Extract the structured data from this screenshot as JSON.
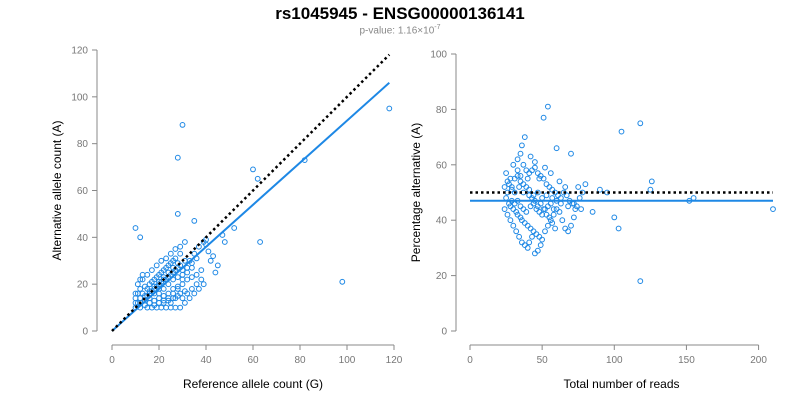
{
  "title": "rs1045945 - ENSG00000136141",
  "subtitle": {
    "prefix": "p-value: 1.16×10",
    "exponent": "-7"
  },
  "colors": {
    "points": "#1e88e5",
    "fit": "#1e88e5",
    "reference": "#000000",
    "axis": "#888888"
  },
  "chart_data": [
    {
      "type": "scatter",
      "xlabel": "Reference allele count (G)",
      "ylabel": "Alternative allele count (A)",
      "xlim": [
        0,
        120
      ],
      "ylim": [
        0,
        120
      ],
      "xticks": [
        0,
        20,
        40,
        60,
        80,
        100,
        120
      ],
      "yticks": [
        0,
        20,
        40,
        60,
        80,
        100,
        120
      ],
      "fit_line": {
        "x": [
          0,
          118
        ],
        "y": [
          0,
          106
        ]
      },
      "reference_line": {
        "x": [
          0,
          118
        ],
        "y": [
          0,
          118
        ]
      },
      "points": [
        [
          10,
          44
        ],
        [
          12,
          40
        ],
        [
          28,
          74
        ],
        [
          30,
          88
        ],
        [
          28,
          50
        ],
        [
          35,
          47
        ],
        [
          40,
          39
        ],
        [
          47,
          41
        ],
        [
          48,
          38
        ],
        [
          52,
          44
        ],
        [
          60,
          69
        ],
        [
          62,
          65
        ],
        [
          63,
          38
        ],
        [
          82,
          73
        ],
        [
          98,
          21
        ],
        [
          118,
          95
        ],
        [
          40,
          37
        ],
        [
          42,
          30
        ],
        [
          44,
          25
        ],
        [
          36,
          31
        ],
        [
          34,
          29
        ],
        [
          32,
          27
        ],
        [
          30,
          24
        ],
        [
          28,
          27
        ],
        [
          26,
          25
        ],
        [
          24,
          23
        ],
        [
          22,
          22
        ],
        [
          20,
          20
        ],
        [
          18,
          18
        ],
        [
          16,
          17
        ],
        [
          14,
          15
        ],
        [
          12,
          14
        ],
        [
          11,
          12
        ],
        [
          10,
          10
        ],
        [
          10,
          12
        ],
        [
          10,
          14
        ],
        [
          12,
          10
        ],
        [
          14,
          11
        ],
        [
          16,
          12
        ],
        [
          18,
          13
        ],
        [
          20,
          14
        ],
        [
          22,
          15
        ],
        [
          24,
          16
        ],
        [
          26,
          18
        ],
        [
          28,
          19
        ],
        [
          30,
          20
        ],
        [
          32,
          22
        ],
        [
          34,
          23
        ],
        [
          36,
          24
        ],
        [
          38,
          26
        ],
        [
          20,
          24
        ],
        [
          22,
          26
        ],
        [
          24,
          28
        ],
        [
          26,
          30
        ],
        [
          18,
          22
        ],
        [
          16,
          20
        ],
        [
          14,
          19
        ],
        [
          12,
          18
        ],
        [
          11,
          16
        ],
        [
          13,
          22
        ],
        [
          15,
          24
        ],
        [
          17,
          26
        ],
        [
          19,
          28
        ],
        [
          21,
          30
        ],
        [
          23,
          31
        ],
        [
          25,
          33
        ],
        [
          27,
          35
        ],
        [
          29,
          36
        ],
        [
          31,
          38
        ],
        [
          15,
          10
        ],
        [
          17,
          10
        ],
        [
          19,
          10
        ],
        [
          21,
          10
        ],
        [
          23,
          10
        ],
        [
          25,
          10
        ],
        [
          27,
          10
        ],
        [
          29,
          10
        ],
        [
          31,
          12
        ],
        [
          33,
          14
        ],
        [
          35,
          16
        ],
        [
          37,
          18
        ],
        [
          39,
          20
        ],
        [
          25,
          12
        ],
        [
          27,
          14
        ],
        [
          29,
          16
        ],
        [
          31,
          17
        ],
        [
          20,
          16
        ],
        [
          22,
          18
        ],
        [
          24,
          20
        ],
        [
          26,
          22
        ],
        [
          28,
          23
        ],
        [
          30,
          26
        ],
        [
          14,
          13
        ],
        [
          16,
          14
        ],
        [
          18,
          16
        ],
        [
          20,
          18
        ],
        [
          12,
          12
        ],
        [
          13,
          16
        ],
        [
          15,
          18
        ],
        [
          17,
          21
        ],
        [
          19,
          23
        ],
        [
          21,
          25
        ],
        [
          23,
          27
        ],
        [
          25,
          29
        ],
        [
          27,
          31
        ],
        [
          29,
          33
        ],
        [
          33,
          30
        ],
        [
          35,
          33
        ],
        [
          37,
          36
        ],
        [
          39,
          38
        ],
        [
          41,
          34
        ],
        [
          43,
          32
        ],
        [
          45,
          28
        ],
        [
          30,
          14
        ],
        [
          32,
          16
        ],
        [
          34,
          18
        ],
        [
          36,
          20
        ],
        [
          38,
          22
        ],
        [
          24,
          14
        ],
        [
          26,
          16
        ],
        [
          28,
          18
        ],
        [
          30,
          22
        ],
        [
          32,
          25
        ],
        [
          34,
          27
        ],
        [
          22,
          12
        ],
        [
          24,
          13
        ],
        [
          26,
          14
        ],
        [
          28,
          15
        ],
        [
          18,
          11
        ],
        [
          20,
          12
        ],
        [
          22,
          13
        ],
        [
          16,
          16
        ],
        [
          18,
          19
        ],
        [
          20,
          21
        ],
        [
          22,
          23
        ],
        [
          24,
          25
        ],
        [
          26,
          27
        ],
        [
          28,
          29
        ],
        [
          10,
          16
        ],
        [
          11,
          20
        ],
        [
          12,
          22
        ],
        [
          13,
          24
        ],
        [
          15,
          15
        ],
        [
          17,
          17
        ],
        [
          19,
          19
        ],
        [
          21,
          21
        ],
        [
          23,
          22
        ],
        [
          25,
          24
        ],
        [
          27,
          26
        ],
        [
          29,
          28
        ],
        [
          31,
          30
        ]
      ]
    },
    {
      "type": "scatter",
      "xlabel": "Total number of reads",
      "ylabel": "Percentage alternative (A)",
      "xlim": [
        0,
        210
      ],
      "ylim": [
        0,
        100
      ],
      "xticks": [
        0,
        50,
        100,
        150,
        200
      ],
      "yticks": [
        0,
        20,
        40,
        60,
        80,
        100
      ],
      "fit_line": {
        "x": [
          0,
          210
        ],
        "y": [
          47,
          47
        ]
      },
      "reference_line": {
        "x": [
          0,
          210
        ],
        "y": [
          50,
          50
        ]
      },
      "points": [
        [
          54,
          81
        ],
        [
          51,
          77
        ],
        [
          118,
          75
        ],
        [
          105,
          72
        ],
        [
          38,
          70
        ],
        [
          36,
          67
        ],
        [
          60,
          66
        ],
        [
          42,
          63
        ],
        [
          70,
          64
        ],
        [
          45,
          61
        ],
        [
          30,
          60
        ],
        [
          33,
          58
        ],
        [
          52,
          59
        ],
        [
          56,
          57
        ],
        [
          25,
          57
        ],
        [
          28,
          55
        ],
        [
          35,
          56
        ],
        [
          40,
          55
        ],
        [
          48,
          55
        ],
        [
          62,
          54
        ],
        [
          66,
          52
        ],
        [
          80,
          53
        ],
        [
          95,
          50
        ],
        [
          90,
          51
        ],
        [
          75,
          52
        ],
        [
          126,
          54
        ],
        [
          125,
          51
        ],
        [
          24,
          52
        ],
        [
          26,
          50
        ],
        [
          29,
          51
        ],
        [
          31,
          50
        ],
        [
          34,
          52
        ],
        [
          37,
          50
        ],
        [
          41,
          51
        ],
        [
          44,
          49
        ],
        [
          47,
          50
        ],
        [
          50,
          48
        ],
        [
          53,
          49
        ],
        [
          57,
          48
        ],
        [
          60,
          47
        ],
        [
          63,
          46
        ],
        [
          68,
          45
        ],
        [
          72,
          46
        ],
        [
          77,
          44
        ],
        [
          85,
          43
        ],
        [
          100,
          41
        ],
        [
          103,
          37
        ],
        [
          152,
          47
        ],
        [
          155,
          48
        ],
        [
          210,
          44
        ],
        [
          25,
          48
        ],
        [
          27,
          46
        ],
        [
          28,
          45
        ],
        [
          30,
          44
        ],
        [
          32,
          43
        ],
        [
          33,
          42
        ],
        [
          35,
          41
        ],
        [
          36,
          40
        ],
        [
          38,
          39
        ],
        [
          40,
          38
        ],
        [
          42,
          37
        ],
        [
          44,
          36
        ],
        [
          46,
          35
        ],
        [
          48,
          34
        ],
        [
          50,
          33
        ],
        [
          52,
          36
        ],
        [
          54,
          38
        ],
        [
          56,
          40
        ],
        [
          58,
          42
        ],
        [
          60,
          44
        ],
        [
          62,
          43
        ],
        [
          64,
          40
        ],
        [
          66,
          37
        ],
        [
          68,
          36
        ],
        [
          70,
          38
        ],
        [
          72,
          41
        ],
        [
          74,
          45
        ],
        [
          76,
          48
        ],
        [
          78,
          50
        ],
        [
          24,
          44
        ],
        [
          26,
          42
        ],
        [
          28,
          40
        ],
        [
          30,
          38
        ],
        [
          32,
          36
        ],
        [
          34,
          34
        ],
        [
          36,
          32
        ],
        [
          38,
          31
        ],
        [
          40,
          30
        ],
        [
          41,
          32
        ],
        [
          43,
          34
        ],
        [
          45,
          28
        ],
        [
          47,
          29
        ],
        [
          49,
          31
        ],
        [
          33,
          62
        ],
        [
          35,
          64
        ],
        [
          37,
          60
        ],
        [
          39,
          58
        ],
        [
          41,
          57
        ],
        [
          43,
          58
        ],
        [
          45,
          59
        ],
        [
          47,
          57
        ],
        [
          49,
          56
        ],
        [
          51,
          55
        ],
        [
          53,
          53
        ],
        [
          55,
          52
        ],
        [
          57,
          51
        ],
        [
          59,
          50
        ],
        [
          61,
          49
        ],
        [
          63,
          48
        ],
        [
          65,
          50
        ],
        [
          67,
          49
        ],
        [
          69,
          47
        ],
        [
          71,
          46
        ],
        [
          73,
          44
        ],
        [
          29,
          47
        ],
        [
          31,
          46
        ],
        [
          33,
          47
        ],
        [
          35,
          45
        ],
        [
          37,
          44
        ],
        [
          39,
          43
        ],
        [
          42,
          45
        ],
        [
          44,
          46
        ],
        [
          46,
          44
        ],
        [
          48,
          43
        ],
        [
          50,
          42
        ],
        [
          52,
          44
        ],
        [
          54,
          45
        ],
        [
          56,
          46
        ],
        [
          58,
          44
        ],
        [
          26,
          54
        ],
        [
          27,
          53
        ],
        [
          29,
          52
        ],
        [
          31,
          55
        ],
        [
          33,
          56
        ],
        [
          35,
          54
        ],
        [
          37,
          53
        ],
        [
          39,
          52
        ],
        [
          41,
          49
        ],
        [
          43,
          48
        ],
        [
          45,
          47
        ],
        [
          47,
          45
        ],
        [
          49,
          46
        ],
        [
          51,
          44
        ],
        [
          53,
          42
        ],
        [
          55,
          41
        ],
        [
          57,
          39
        ],
        [
          59,
          37
        ],
        [
          118,
          18
        ]
      ]
    }
  ]
}
